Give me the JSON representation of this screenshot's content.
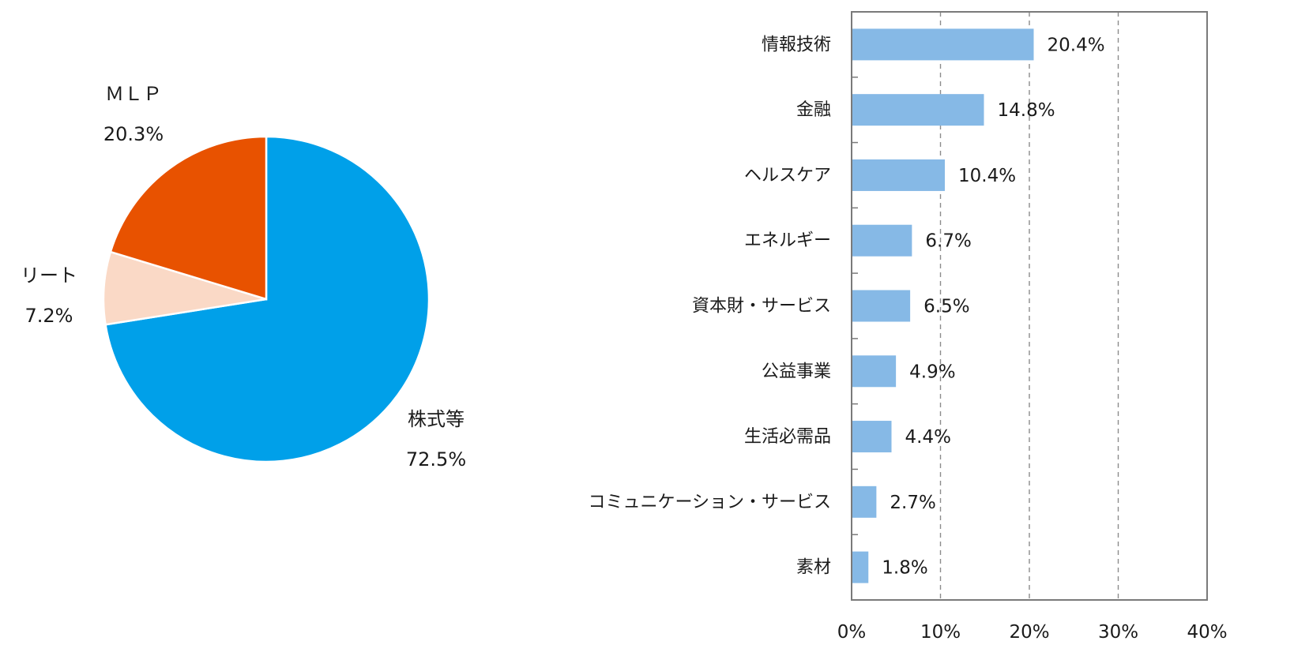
{
  "chart_data": [
    {
      "type": "pie",
      "slices": [
        {
          "label": "株式等",
          "value": 72.5,
          "value_label": "72.5%",
          "color": "#00a0e9"
        },
        {
          "label": "リート",
          "value": 7.2,
          "value_label": "7.2%",
          "color": "#fad9c6"
        },
        {
          "label": "ＭＬＰ",
          "value": 20.3,
          "value_label": "20.3%",
          "color": "#e85200"
        }
      ]
    },
    {
      "type": "bar",
      "orientation": "horizontal",
      "categories": [
        "情報技術",
        "金融",
        "ヘルスケア",
        "エネルギー",
        "資本財・サービス",
        "公益事業",
        "生活必需品",
        "コミュニケーション・サービス",
        "素材"
      ],
      "values": [
        20.4,
        14.8,
        10.4,
        6.7,
        6.5,
        4.9,
        4.4,
        2.7,
        1.8
      ],
      "value_labels": [
        "20.4%",
        "14.8%",
        "10.4%",
        "6.7%",
        "6.5%",
        "4.9%",
        "4.4%",
        "2.7%",
        "1.8%"
      ],
      "xlim": [
        0,
        40
      ],
      "xticks": [
        0,
        10,
        20,
        30,
        40
      ],
      "xtick_labels": [
        "0%",
        "10%",
        "20%",
        "30%",
        "40%"
      ],
      "bar_color": "#86b9e6",
      "grid": "vertical dashed"
    }
  ]
}
